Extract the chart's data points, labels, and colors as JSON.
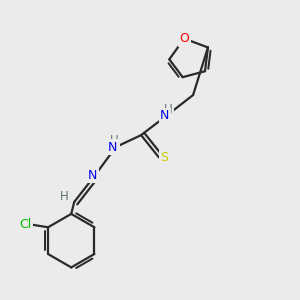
{
  "bg_color": "#ebebeb",
  "bond_color": "#2a2a2a",
  "bond_width": 1.6,
  "atom_colors": {
    "O": "#ff0000",
    "N": "#0000ee",
    "S": "#cccc00",
    "Cl": "#00bb00",
    "C": "#2a2a2a",
    "H": "#607070"
  },
  "figsize": [
    3.0,
    3.0
  ],
  "dpi": 100
}
